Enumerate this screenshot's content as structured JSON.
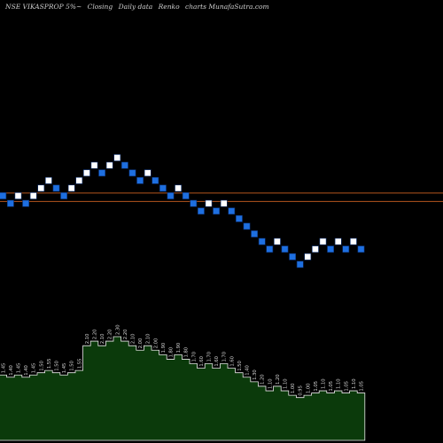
{
  "header": {
    "ticker": "NSE VIKASPROP 5%~",
    "mode": "Closing",
    "frequency": "Daily data",
    "chart_kind": "Renko",
    "site": "charts MunafaSutra.com"
  },
  "colors": {
    "background": "#000000",
    "up_brick": "#ffffff",
    "down_brick": "#1e6fe0",
    "brick_border": "#0a2f70",
    "reference_line": "#b4561e",
    "volume_fill": "#0b3a0b",
    "volume_line": "#e8e8e8",
    "value_label": "#d8d8d8"
  },
  "chart_data": {
    "type": "renko",
    "bricks": [
      {
        "i": 0,
        "level": 0,
        "dir": "down"
      },
      {
        "i": 1,
        "level": -1,
        "dir": "down"
      },
      {
        "i": 2,
        "level": 0,
        "dir": "up"
      },
      {
        "i": 3,
        "level": -1,
        "dir": "down"
      },
      {
        "i": 4,
        "level": 0,
        "dir": "up"
      },
      {
        "i": 5,
        "level": 1,
        "dir": "up"
      },
      {
        "i": 6,
        "level": 2,
        "dir": "up"
      },
      {
        "i": 7,
        "level": 1,
        "dir": "down"
      },
      {
        "i": 8,
        "level": 0,
        "dir": "down"
      },
      {
        "i": 9,
        "level": 1,
        "dir": "up"
      },
      {
        "i": 10,
        "level": 2,
        "dir": "up"
      },
      {
        "i": 11,
        "level": 3,
        "dir": "up"
      },
      {
        "i": 12,
        "level": 4,
        "dir": "up"
      },
      {
        "i": 13,
        "level": 3,
        "dir": "down"
      },
      {
        "i": 14,
        "level": 4,
        "dir": "up"
      },
      {
        "i": 15,
        "level": 5,
        "dir": "up"
      },
      {
        "i": 16,
        "level": 4,
        "dir": "down"
      },
      {
        "i": 17,
        "level": 3,
        "dir": "down"
      },
      {
        "i": 18,
        "level": 2,
        "dir": "down"
      },
      {
        "i": 19,
        "level": 3,
        "dir": "up"
      },
      {
        "i": 20,
        "level": 2,
        "dir": "down"
      },
      {
        "i": 21,
        "level": 1,
        "dir": "down"
      },
      {
        "i": 22,
        "level": 0,
        "dir": "down"
      },
      {
        "i": 23,
        "level": 1,
        "dir": "up"
      },
      {
        "i": 24,
        "level": 0,
        "dir": "down"
      },
      {
        "i": 25,
        "level": -1,
        "dir": "down"
      },
      {
        "i": 26,
        "level": -2,
        "dir": "down"
      },
      {
        "i": 27,
        "level": -1,
        "dir": "up"
      },
      {
        "i": 28,
        "level": -2,
        "dir": "down"
      },
      {
        "i": 29,
        "level": -1,
        "dir": "up"
      },
      {
        "i": 30,
        "level": -2,
        "dir": "down"
      },
      {
        "i": 31,
        "level": -3,
        "dir": "down"
      },
      {
        "i": 32,
        "level": -4,
        "dir": "down"
      },
      {
        "i": 33,
        "level": -5,
        "dir": "down"
      },
      {
        "i": 34,
        "level": -6,
        "dir": "down"
      },
      {
        "i": 35,
        "level": -7,
        "dir": "down"
      },
      {
        "i": 36,
        "level": -6,
        "dir": "up"
      },
      {
        "i": 37,
        "level": -7,
        "dir": "down"
      },
      {
        "i": 38,
        "level": -8,
        "dir": "down"
      },
      {
        "i": 39,
        "level": -9,
        "dir": "down"
      },
      {
        "i": 40,
        "level": -8,
        "dir": "up"
      },
      {
        "i": 41,
        "level": -7,
        "dir": "up"
      },
      {
        "i": 42,
        "level": -6,
        "dir": "up"
      },
      {
        "i": 43,
        "level": -7,
        "dir": "down"
      },
      {
        "i": 44,
        "level": -6,
        "dir": "up"
      },
      {
        "i": 45,
        "level": -7,
        "dir": "down"
      },
      {
        "i": 46,
        "level": -6,
        "dir": "up"
      },
      {
        "i": 47,
        "level": -7,
        "dir": "down"
      }
    ],
    "reference_levels": [
      0.3,
      -0.8
    ],
    "level_range": [
      -17,
      10
    ],
    "values": [
      "1.45",
      "1.40",
      "1.45",
      "1.40",
      "1.45",
      "1.50",
      "1.55",
      "1.50",
      "1.45",
      "1.50",
      "1.55",
      "2.10",
      "2.20",
      "2.10",
      "2.20",
      "2.30",
      "2.20",
      "2.10",
      "2.00",
      "2.10",
      "2.00",
      "1.90",
      "1.80",
      "1.90",
      "1.80",
      "1.70",
      "1.60",
      "1.70",
      "1.60",
      "1.70",
      "1.60",
      "1.50",
      "1.40",
      "1.30",
      "1.20",
      "1.10",
      "1.20",
      "1.10",
      "1.00",
      "0.95",
      "1.00",
      "1.05",
      "1.10",
      "1.05",
      "1.10",
      "1.05",
      "1.10",
      "1.05"
    ],
    "grid": false,
    "legend": "none"
  }
}
